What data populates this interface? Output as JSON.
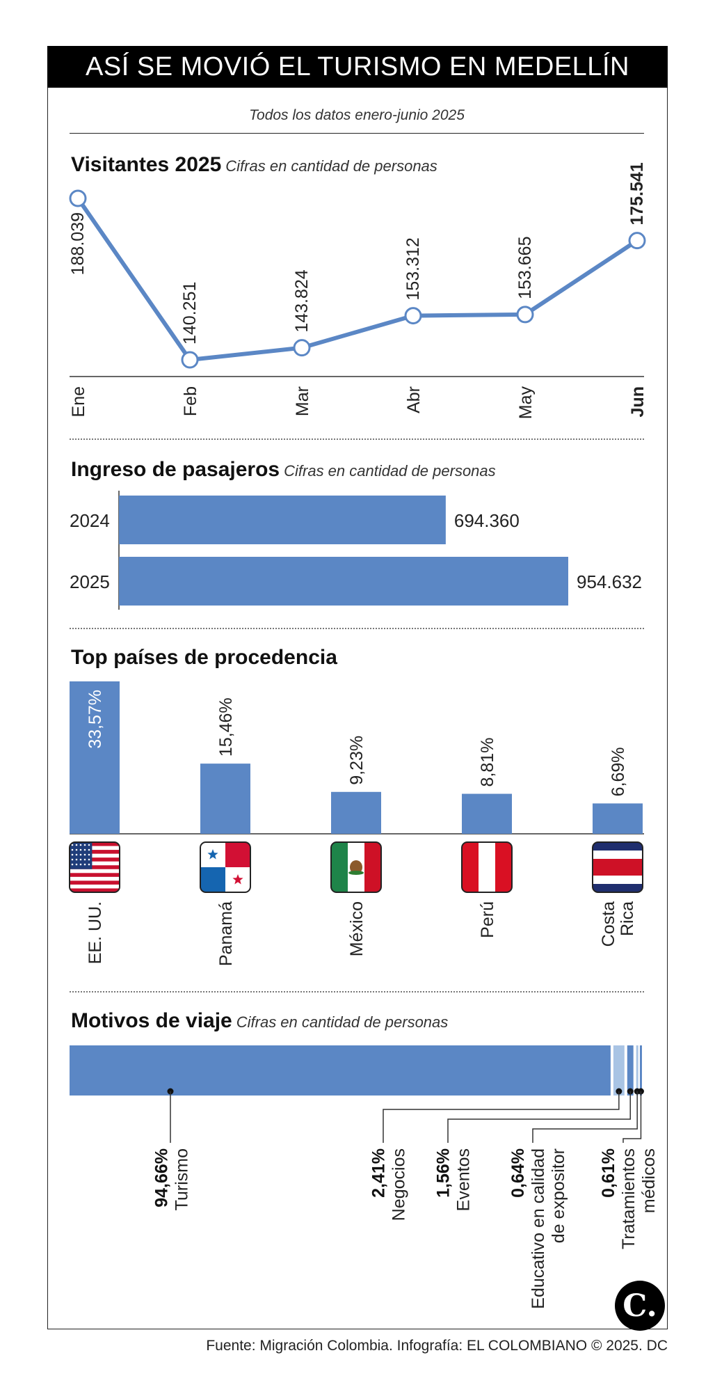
{
  "header": {
    "title": "ASÍ SE MOVIÓ EL TURISMO EN MEDELLÍN",
    "subtitle": "Todos los datos enero-junio 2025"
  },
  "sections": {
    "visitors": {
      "title": "Visitantes 2025",
      "note": "Cifras en cantidad de personas"
    },
    "passengers": {
      "title": "Ingreso de pasajeros",
      "note": "Cifras en cantidad de personas"
    },
    "countries": {
      "title": "Top países de procedencia"
    },
    "reasons": {
      "title": "Motivos de viaje",
      "note": "Cifras en cantidad de personas"
    }
  },
  "chart_data": [
    {
      "type": "line",
      "title": "Visitantes 2025",
      "subtitle": "Cifras en cantidad de personas",
      "categories": [
        "Ene",
        "Feb",
        "Mar",
        "Abr",
        "May",
        "Jun"
      ],
      "values": [
        188039,
        140251,
        143824,
        153312,
        153665,
        175541
      ],
      "labels": [
        "188.039",
        "140.251",
        "143.824",
        "153.312",
        "153.665",
        "175.541"
      ],
      "highlight_index": 5,
      "color": "#5b87c5"
    },
    {
      "type": "bar",
      "orientation": "horizontal",
      "title": "Ingreso de pasajeros",
      "subtitle": "Cifras en cantidad de personas",
      "categories": [
        "2024",
        "2025"
      ],
      "values": [
        694360,
        954632
      ],
      "labels": [
        "694.360",
        "954.632"
      ],
      "color": "#5b87c5"
    },
    {
      "type": "bar",
      "title": "Top países de procedencia",
      "categories": [
        "EE. UU.",
        "Panamá",
        "México",
        "Perú",
        "Costa Rica"
      ],
      "values": [
        33.57,
        15.46,
        9.23,
        8.81,
        6.69
      ],
      "labels": [
        "33,57%",
        "15,46%",
        "9,23%",
        "8,81%",
        "6,69%"
      ],
      "flags": [
        "usa-flag-icon",
        "panama-flag-icon",
        "mexico-flag-icon",
        "peru-flag-icon",
        "costa-rica-flag-icon"
      ],
      "color": "#5b87c5"
    },
    {
      "type": "bar",
      "orientation": "stacked-horizontal",
      "title": "Motivos de viaje",
      "subtitle": "Cifras en cantidad de personas",
      "categories": [
        "Turismo",
        "Negocios",
        "Eventos",
        "Educativo en calidad de expositor",
        "Tratamientos médicos"
      ],
      "category_lines": [
        [
          "Turismo"
        ],
        [
          "Negocios"
        ],
        [
          "Eventos"
        ],
        [
          "Educativo en calidad",
          "de expositor"
        ],
        [
          "Tratamientos",
          "médicos"
        ]
      ],
      "values": [
        94.66,
        2.41,
        1.56,
        0.64,
        0.61
      ],
      "labels": [
        "94,66%",
        "2,41%",
        "1,56%",
        "0,64%",
        "0,61%"
      ],
      "colors": [
        "#5b87c5",
        "#a9c4e4",
        "#5b87c5",
        "#a9c4e4",
        "#5b87c5"
      ]
    }
  ],
  "footer": {
    "source": "Fuente: Migración Colombia. Infografía: EL COLOMBIANO © 2025. DC",
    "logo": "C."
  }
}
